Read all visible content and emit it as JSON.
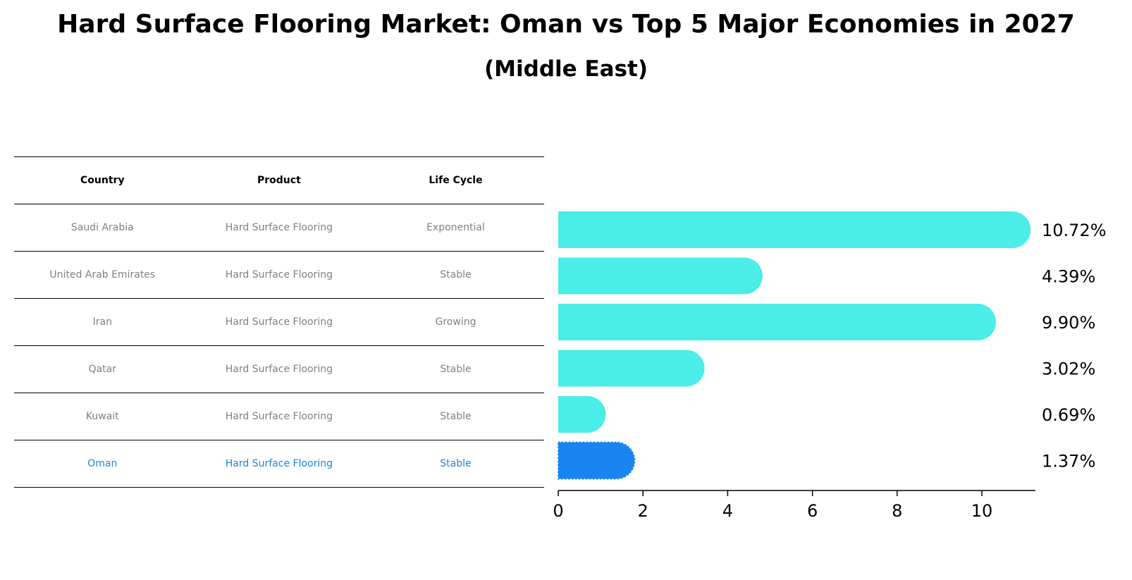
{
  "title": "Hard Surface Flooring Market: Oman vs Top 5 Major Economies in 2027",
  "subtitle": "(Middle East)",
  "table": {
    "headers": [
      "Country",
      "Product",
      "Life Cycle"
    ],
    "rows": [
      [
        "Saudi Arabia",
        "Hard Surface Flooring",
        "Exponential"
      ],
      [
        "United Arab Emirates",
        "Hard Surface Flooring",
        "Stable"
      ],
      [
        "Iran",
        "Hard Surface Flooring",
        "Growing"
      ],
      [
        "Qatar",
        "Hard Surface Flooring",
        "Stable"
      ],
      [
        "Kuwait",
        "Hard Surface Flooring",
        "Stable"
      ],
      [
        "Oman",
        "Hard Surface Flooring",
        "Stable"
      ]
    ],
    "highlight_row": 5
  },
  "colors": {
    "bar": "#4aede8",
    "highlight_bar": "#1a85f0",
    "highlight_text": "#1a85dc",
    "muted_text": "#808080"
  },
  "chart_data": {
    "type": "bar",
    "orientation": "horizontal",
    "categories": [
      "Saudi Arabia",
      "United Arab Emirates",
      "Iran",
      "Qatar",
      "Kuwait",
      "Oman"
    ],
    "values": [
      10.72,
      4.39,
      9.9,
      3.02,
      0.69,
      1.37
    ],
    "value_labels": [
      "10.72%",
      "4.39%",
      "9.90%",
      "3.02%",
      "0.69%",
      "1.37%"
    ],
    "highlight_category": "Oman",
    "xticks": [
      0,
      2,
      4,
      6,
      8,
      10
    ],
    "xlim": [
      0,
      11.3
    ],
    "xlabel": "",
    "ylabel": "",
    "grid": false
  }
}
